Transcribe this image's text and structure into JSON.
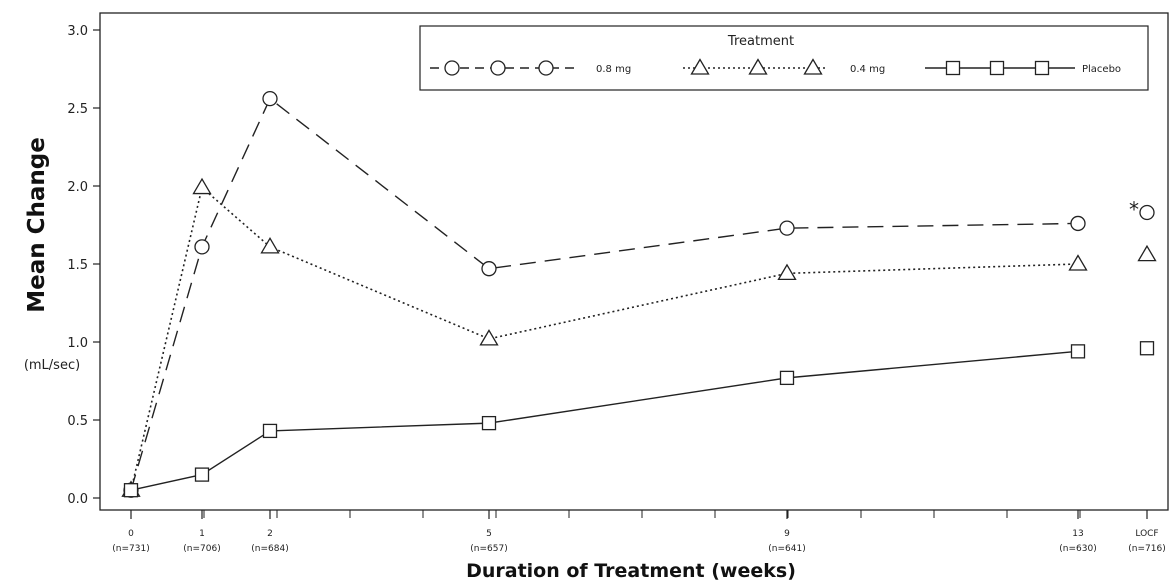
{
  "chart_data": {
    "type": "line",
    "ylabel": "Mean Change",
    "ylabel_unit": "(mL/sec)",
    "xlabel": "Duration of Treatment (weeks)",
    "ylim": [
      0,
      3
    ],
    "y_ticks": [
      "0.0",
      "0.5",
      "1.0",
      "1.5",
      "2.0",
      "2.5",
      "3.0"
    ],
    "x": [
      "0",
      "1",
      "2",
      "5",
      "9",
      "13",
      "LOCF"
    ],
    "x_n": [
      "(n=731)",
      "(n=706)",
      "(n=684)",
      "(n=657)",
      "(n=641)",
      "(n=630)",
      "(n=716)"
    ],
    "legend": {
      "title": "Treatment",
      "placement": "top-right"
    },
    "series": [
      {
        "name": "0.8 mg",
        "marker": "circle",
        "line": "dashed",
        "values": [
          0.05,
          1.61,
          2.56,
          1.47,
          1.73,
          1.76,
          1.83
        ]
      },
      {
        "name": "0.4 mg",
        "marker": "triangle",
        "line": "dotted",
        "values": [
          0.05,
          1.99,
          1.61,
          1.02,
          1.44,
          1.5,
          1.56
        ]
      },
      {
        "name": "Placebo",
        "marker": "square",
        "line": "solid",
        "values": [
          0.05,
          0.15,
          0.43,
          0.48,
          0.77,
          0.94,
          0.96
        ]
      }
    ],
    "annotations": [
      {
        "text": "*",
        "at": "LOCF",
        "series": "0.8 mg"
      }
    ]
  }
}
